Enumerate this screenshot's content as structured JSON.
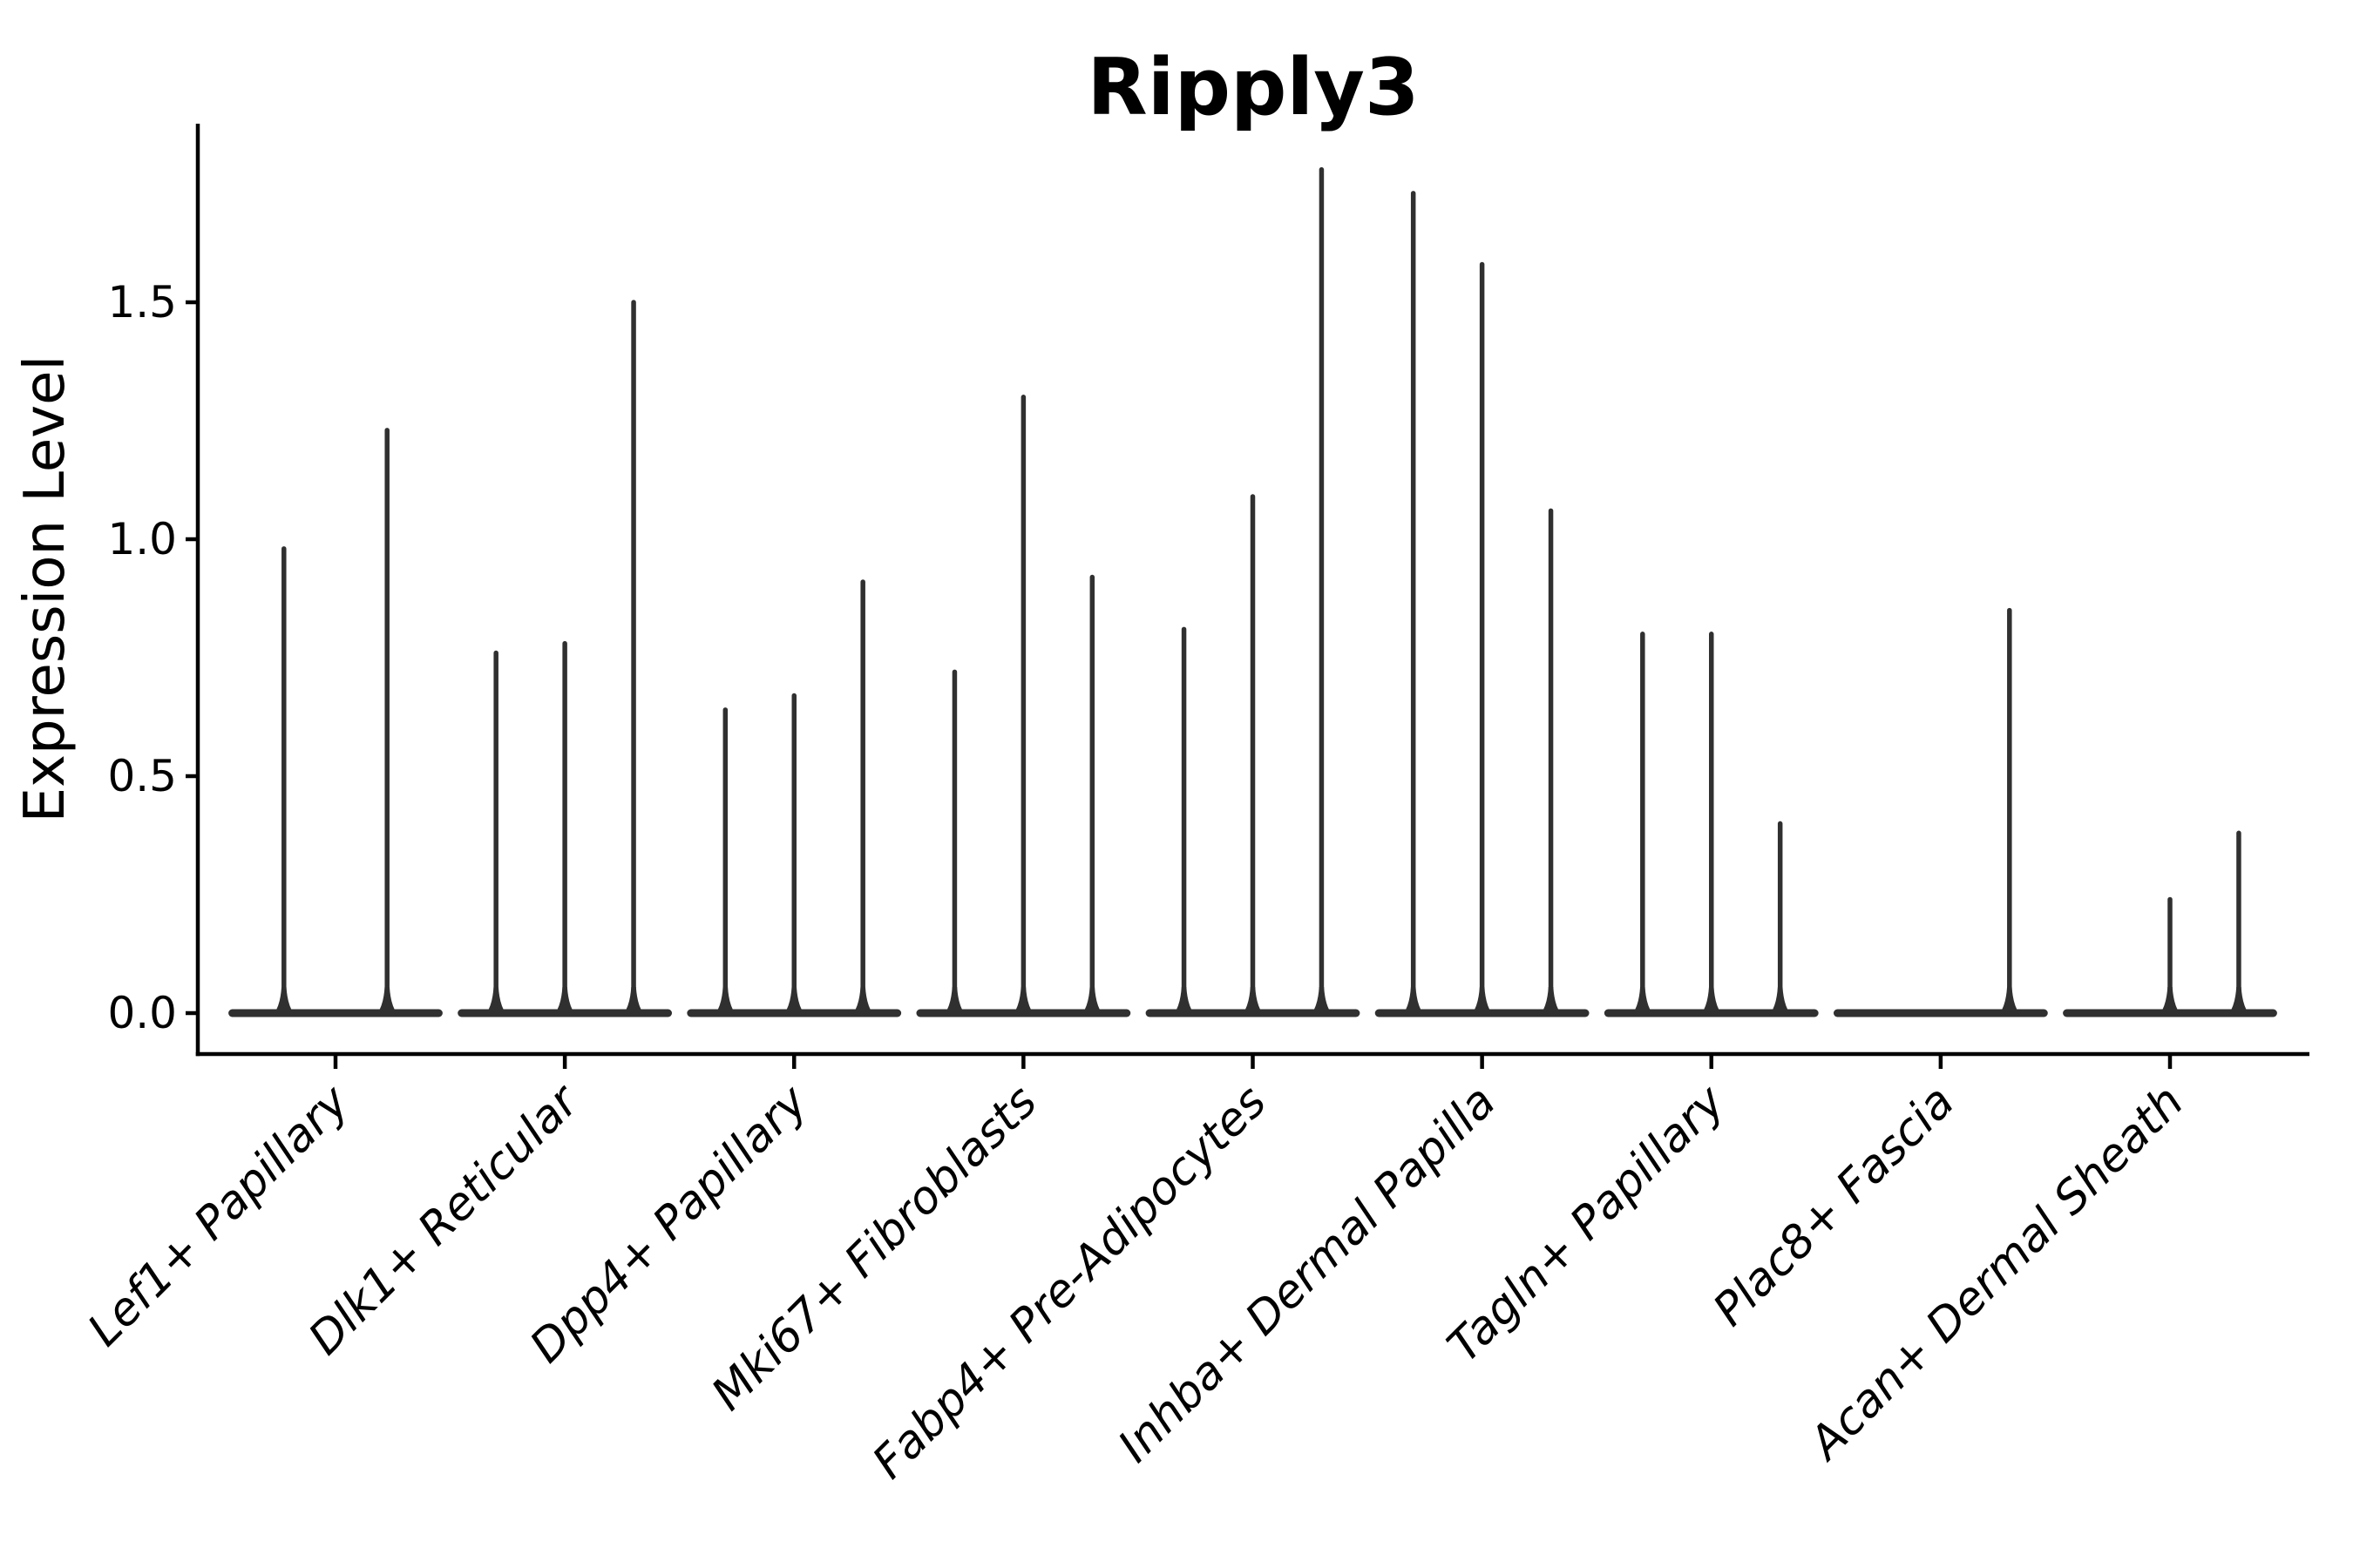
{
  "page": {
    "background": "#ffffff"
  },
  "chart_data": {
    "type": "violin",
    "title": "Ripply3",
    "ylabel": "Expression Level",
    "xlabel": "",
    "ytick_labels": [
      "0.0",
      "0.5",
      "1.0",
      "1.5"
    ],
    "ytick_values": [
      0.0,
      0.5,
      1.0,
      1.5
    ],
    "ylim": [
      -0.09,
      1.88
    ],
    "grid": false,
    "legend": null,
    "colors": {
      "violin": "#303030",
      "axis": "#000000",
      "text": "#000000"
    },
    "categories": [
      "Lef1+ Papillary",
      "Dlk1+ Reticular",
      "Dpp4+ Papillary",
      "Mki67+ Fibroblasts",
      "Fabp4+ Pre-Adipocytes",
      "Inhba+ Dermal Papilla",
      "Tagln+ Papillary",
      "Plac8+ Fascia",
      "Acan+ Dermal Sheath"
    ],
    "series": [
      {
        "category": "Lef1+ Papillary",
        "violin_peaks": [
          0.98,
          1.23
        ]
      },
      {
        "category": "Dlk1+ Reticular",
        "violin_peaks": [
          0.76,
          0.78,
          1.5
        ]
      },
      {
        "category": "Dpp4+ Papillary",
        "violin_peaks": [
          0.64,
          0.67,
          0.91
        ]
      },
      {
        "category": "Mki67+ Fibroblasts",
        "violin_peaks": [
          0.72,
          1.3,
          0.92
        ]
      },
      {
        "category": "Fabp4+ Pre-Adipocytes",
        "violin_peaks": [
          0.81,
          1.09,
          1.78
        ]
      },
      {
        "category": "Inhba+ Dermal Papilla",
        "violin_peaks": [
          1.73,
          1.58,
          1.06
        ]
      },
      {
        "category": "Tagln+ Papillary",
        "violin_peaks": [
          0.8,
          0.8,
          0.4
        ]
      },
      {
        "category": "Plac8+ Fascia",
        "violin_peaks": [
          0.0,
          0.0,
          0.85
        ]
      },
      {
        "category": "Acan+ Dermal Sheath",
        "violin_peaks": [
          0.0,
          0.24,
          0.38
        ]
      }
    ]
  }
}
